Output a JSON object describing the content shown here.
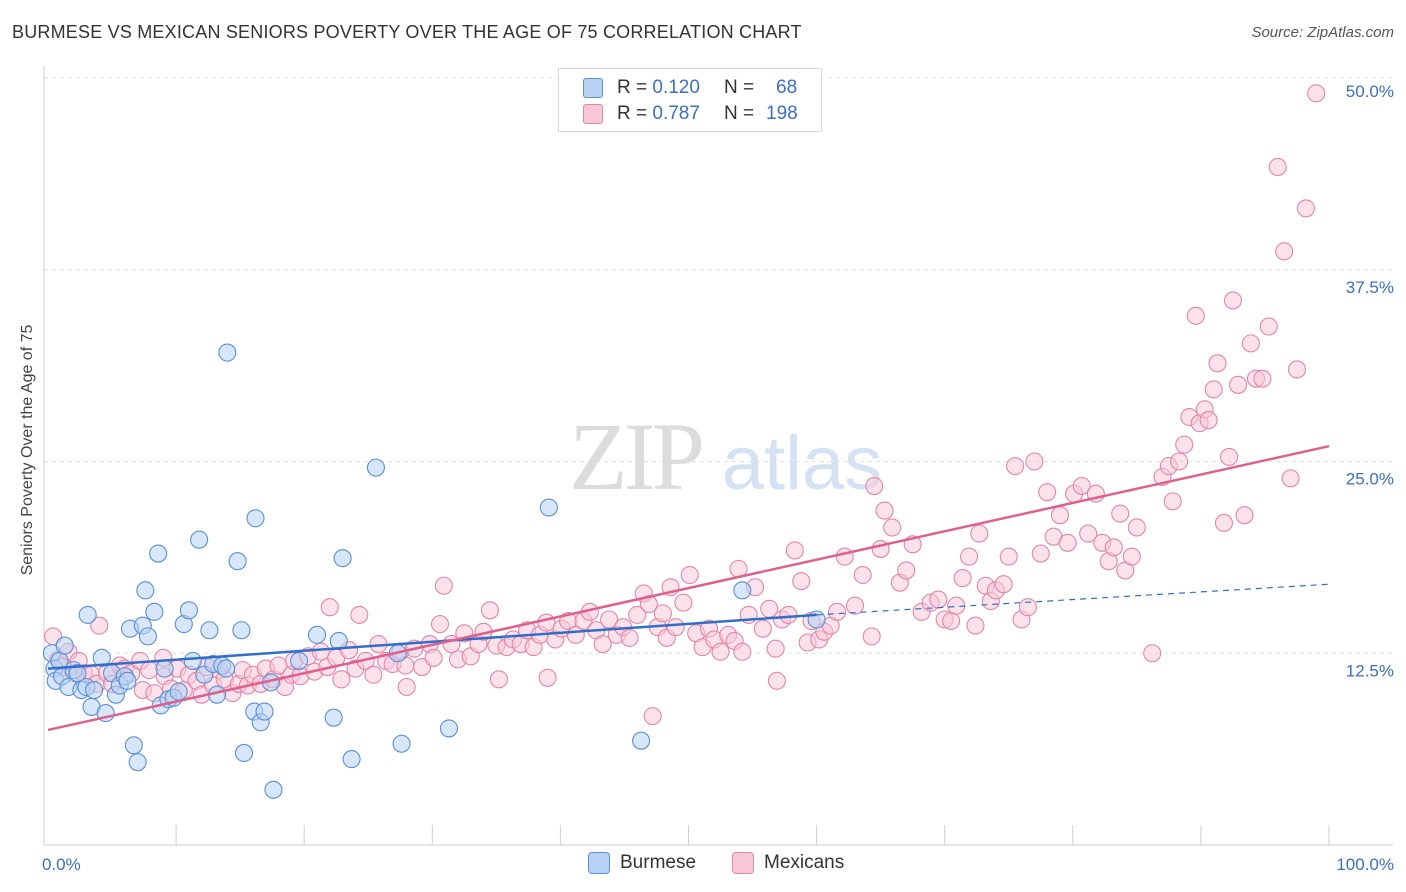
{
  "header": {
    "title": "BURMESE VS MEXICAN SENIORS POVERTY OVER THE AGE OF 75 CORRELATION CHART",
    "source": "Source: ZipAtlas.com"
  },
  "watermark": {
    "zip": "ZIP",
    "atlas": "atlas"
  },
  "stats": [
    {
      "r_label": "R =",
      "r_value": "0.120",
      "n_label": "N =",
      "n_value": "68",
      "color": "#5b8fd6",
      "fill": "#b8d2f4"
    },
    {
      "r_label": "R =",
      "r_value": "0.787",
      "n_label": "N =",
      "n_value": "198",
      "color": "#e486a6",
      "fill": "#f8c8d8"
    }
  ],
  "legend": [
    {
      "name": "Burmese",
      "color": "#5b8fd6",
      "fill": "#b8d2f4"
    },
    {
      "name": "Mexicans",
      "color": "#e486a6",
      "fill": "#f8c8d8"
    }
  ],
  "chart_data": {
    "type": "scatter",
    "title": "BURMESE VS MEXICAN SENIORS POVERTY OVER THE AGE OF 75 CORRELATION CHART",
    "xlabel": "",
    "ylabel": "Seniors Poverty Over the Age of 75",
    "xlim": [
      0,
      100
    ],
    "ylim": [
      0,
      50
    ],
    "x_tick_labels": [
      "0.0%",
      "100.0%"
    ],
    "y_ticks": [
      12.5,
      25,
      37.5,
      50
    ],
    "y_tick_labels": [
      "12.5%",
      "25.0%",
      "37.5%",
      "50.0%"
    ],
    "grid": true,
    "legend_position": "bottom-center",
    "series": [
      {
        "name": "Burmese",
        "color": "#5b8fd6",
        "fill": "#b8d2f4",
        "trend": {
          "x": [
            0,
            60
          ],
          "y": [
            11.5,
            15.0
          ],
          "dashed_to": [
            100,
            17.0
          ]
        },
        "points": [
          [
            0.3,
            12.5
          ],
          [
            0.5,
            11.5
          ],
          [
            0.6,
            10.7
          ],
          [
            0.9,
            12.0
          ],
          [
            1.1,
            11.0
          ],
          [
            1.3,
            13.0
          ],
          [
            1.6,
            10.3
          ],
          [
            2.0,
            11.4
          ],
          [
            2.3,
            11.2
          ],
          [
            2.6,
            10.1
          ],
          [
            3.0,
            10.3
          ],
          [
            3.1,
            15.0
          ],
          [
            3.4,
            9.0
          ],
          [
            3.6,
            10.1
          ],
          [
            4.2,
            12.2
          ],
          [
            4.5,
            8.6
          ],
          [
            5.0,
            11.2
          ],
          [
            5.3,
            9.8
          ],
          [
            5.6,
            10.4
          ],
          [
            6.0,
            11.0
          ],
          [
            6.2,
            10.7
          ],
          [
            6.4,
            14.1
          ],
          [
            6.7,
            6.5
          ],
          [
            7.0,
            5.4
          ],
          [
            7.4,
            14.3
          ],
          [
            7.6,
            16.6
          ],
          [
            7.8,
            13.6
          ],
          [
            8.3,
            15.2
          ],
          [
            8.6,
            19.0
          ],
          [
            8.8,
            9.1
          ],
          [
            9.1,
            11.5
          ],
          [
            9.4,
            9.5
          ],
          [
            9.8,
            9.6
          ],
          [
            10.2,
            10.0
          ],
          [
            10.6,
            14.4
          ],
          [
            11.0,
            15.3
          ],
          [
            11.3,
            12.0
          ],
          [
            11.8,
            19.9
          ],
          [
            12.2,
            11.1
          ],
          [
            12.6,
            14.0
          ],
          [
            12.9,
            11.8
          ],
          [
            13.2,
            9.8
          ],
          [
            13.6,
            11.7
          ],
          [
            13.9,
            11.5
          ],
          [
            14.0,
            32.1
          ],
          [
            14.8,
            18.5
          ],
          [
            15.1,
            14.0
          ],
          [
            15.3,
            6.0
          ],
          [
            16.1,
            8.7
          ],
          [
            16.2,
            21.3
          ],
          [
            16.6,
            8.0
          ],
          [
            16.9,
            8.7
          ],
          [
            17.4,
            10.6
          ],
          [
            17.6,
            3.6
          ],
          [
            19.6,
            12.0
          ],
          [
            21.0,
            13.7
          ],
          [
            22.3,
            8.3
          ],
          [
            22.7,
            13.3
          ],
          [
            23.0,
            18.7
          ],
          [
            23.7,
            5.6
          ],
          [
            25.6,
            24.6
          ],
          [
            27.3,
            12.5
          ],
          [
            27.6,
            6.6
          ],
          [
            31.3,
            7.6
          ],
          [
            39.1,
            22.0
          ],
          [
            46.3,
            6.8
          ],
          [
            54.2,
            16.6
          ],
          [
            60.0,
            14.7
          ]
        ]
      },
      {
        "name": "Mexicans",
        "color": "#e486a6",
        "fill": "#f8c8d8",
        "trend": {
          "x": [
            0,
            100
          ],
          "y": [
            7.5,
            26.0
          ]
        },
        "points": [
          [
            0.4,
            13.6
          ],
          [
            0.8,
            12.1
          ],
          [
            1.2,
            11.6
          ],
          [
            1.6,
            12.6
          ],
          [
            2.0,
            11.2
          ],
          [
            2.4,
            12.0
          ],
          [
            2.8,
            11.2
          ],
          [
            3.4,
            11.1
          ],
          [
            3.8,
            10.5
          ],
          [
            4.0,
            14.3
          ],
          [
            4.6,
            11.2
          ],
          [
            5.0,
            10.5
          ],
          [
            5.6,
            11.7
          ],
          [
            6.0,
            11.5
          ],
          [
            6.5,
            11.2
          ],
          [
            7.2,
            12.0
          ],
          [
            7.4,
            10.1
          ],
          [
            7.9,
            11.4
          ],
          [
            8.3,
            9.9
          ],
          [
            9.0,
            12.2
          ],
          [
            9.1,
            11.0
          ],
          [
            9.6,
            10.2
          ],
          [
            10.1,
            11.5
          ],
          [
            10.6,
            10.1
          ],
          [
            11.0,
            11.1
          ],
          [
            11.6,
            10.7
          ],
          [
            12.0,
            9.8
          ],
          [
            12.4,
            11.6
          ],
          [
            12.9,
            10.4
          ],
          [
            13.4,
            11.4
          ],
          [
            13.8,
            10.8
          ],
          [
            14.4,
            9.9
          ],
          [
            14.9,
            10.5
          ],
          [
            15.2,
            11.4
          ],
          [
            15.6,
            10.4
          ],
          [
            16.0,
            11.1
          ],
          [
            16.6,
            10.5
          ],
          [
            17.0,
            11.5
          ],
          [
            17.6,
            10.8
          ],
          [
            18.0,
            11.7
          ],
          [
            18.5,
            10.3
          ],
          [
            19.0,
            11.1
          ],
          [
            19.2,
            12.0
          ],
          [
            19.7,
            11.0
          ],
          [
            20.3,
            12.3
          ],
          [
            20.8,
            11.3
          ],
          [
            21.3,
            12.6
          ],
          [
            21.8,
            11.6
          ],
          [
            22.0,
            15.5
          ],
          [
            22.5,
            12.2
          ],
          [
            22.9,
            10.8
          ],
          [
            23.5,
            12.7
          ],
          [
            24.0,
            11.5
          ],
          [
            24.3,
            15.0
          ],
          [
            24.8,
            12.0
          ],
          [
            25.4,
            11.1
          ],
          [
            25.8,
            13.1
          ],
          [
            26.4,
            12.0
          ],
          [
            26.9,
            11.8
          ],
          [
            27.5,
            12.6
          ],
          [
            27.9,
            11.7
          ],
          [
            28.0,
            10.3
          ],
          [
            28.6,
            12.8
          ],
          [
            29.2,
            11.6
          ],
          [
            29.8,
            13.1
          ],
          [
            30.1,
            12.2
          ],
          [
            30.6,
            14.4
          ],
          [
            30.9,
            16.9
          ],
          [
            31.5,
            13.1
          ],
          [
            32.0,
            12.1
          ],
          [
            32.5,
            13.8
          ],
          [
            33.0,
            12.3
          ],
          [
            33.6,
            13.1
          ],
          [
            34.0,
            13.9
          ],
          [
            34.5,
            15.3
          ],
          [
            35.0,
            13.0
          ],
          [
            35.2,
            10.8
          ],
          [
            35.8,
            12.9
          ],
          [
            36.3,
            13.4
          ],
          [
            36.9,
            13.1
          ],
          [
            37.4,
            14.0
          ],
          [
            37.9,
            12.9
          ],
          [
            38.4,
            13.7
          ],
          [
            38.9,
            14.5
          ],
          [
            39.0,
            10.9
          ],
          [
            39.6,
            13.4
          ],
          [
            40.1,
            14.1
          ],
          [
            40.6,
            14.6
          ],
          [
            41.2,
            13.7
          ],
          [
            41.8,
            14.6
          ],
          [
            42.3,
            15.2
          ],
          [
            42.8,
            14.0
          ],
          [
            43.3,
            13.1
          ],
          [
            43.8,
            14.7
          ],
          [
            44.4,
            13.7
          ],
          [
            44.9,
            14.2
          ],
          [
            45.4,
            13.5
          ],
          [
            46.0,
            15.0
          ],
          [
            46.5,
            16.4
          ],
          [
            46.9,
            15.7
          ],
          [
            47.2,
            8.4
          ],
          [
            47.6,
            14.2
          ],
          [
            48.0,
            15.1
          ],
          [
            48.3,
            13.5
          ],
          [
            48.6,
            16.8
          ],
          [
            49.0,
            14.2
          ],
          [
            49.6,
            15.8
          ],
          [
            50.1,
            17.6
          ],
          [
            50.6,
            13.8
          ],
          [
            51.1,
            12.9
          ],
          [
            51.6,
            14.1
          ],
          [
            52.0,
            13.4
          ],
          [
            52.5,
            12.6
          ],
          [
            53.1,
            13.7
          ],
          [
            53.6,
            13.3
          ],
          [
            53.9,
            18.0
          ],
          [
            54.2,
            12.6
          ],
          [
            54.7,
            15.0
          ],
          [
            55.2,
            16.8
          ],
          [
            55.8,
            14.1
          ],
          [
            56.3,
            15.4
          ],
          [
            56.8,
            12.8
          ],
          [
            56.9,
            10.7
          ],
          [
            57.3,
            14.7
          ],
          [
            57.8,
            15.0
          ],
          [
            58.3,
            19.2
          ],
          [
            58.8,
            17.2
          ],
          [
            59.3,
            13.2
          ],
          [
            59.6,
            14.6
          ],
          [
            60.2,
            13.4
          ],
          [
            60.6,
            13.9
          ],
          [
            61.1,
            14.3
          ],
          [
            61.6,
            15.2
          ],
          [
            62.2,
            18.8
          ],
          [
            63.0,
            15.6
          ],
          [
            63.6,
            17.6
          ],
          [
            64.3,
            13.6
          ],
          [
            64.5,
            23.4
          ],
          [
            65.0,
            19.3
          ],
          [
            65.3,
            21.8
          ],
          [
            65.9,
            20.7
          ],
          [
            66.5,
            17.1
          ],
          [
            67.0,
            17.9
          ],
          [
            67.5,
            19.6
          ],
          [
            68.2,
            15.2
          ],
          [
            68.9,
            15.8
          ],
          [
            69.5,
            16.0
          ],
          [
            70.0,
            14.7
          ],
          [
            70.5,
            14.6
          ],
          [
            70.9,
            15.6
          ],
          [
            71.4,
            17.4
          ],
          [
            71.9,
            18.8
          ],
          [
            72.4,
            14.3
          ],
          [
            72.7,
            20.3
          ],
          [
            73.2,
            16.9
          ],
          [
            73.6,
            15.9
          ],
          [
            74.0,
            16.6
          ],
          [
            74.6,
            17.0
          ],
          [
            75.0,
            18.8
          ],
          [
            75.5,
            24.7
          ],
          [
            76.0,
            14.7
          ],
          [
            76.5,
            15.5
          ],
          [
            77.0,
            25.0
          ],
          [
            77.5,
            19.0
          ],
          [
            78.0,
            23.0
          ],
          [
            78.5,
            20.1
          ],
          [
            79.0,
            21.5
          ],
          [
            79.6,
            19.7
          ],
          [
            80.1,
            22.9
          ],
          [
            80.7,
            23.4
          ],
          [
            81.2,
            20.3
          ],
          [
            81.8,
            22.9
          ],
          [
            82.3,
            19.7
          ],
          [
            82.8,
            18.5
          ],
          [
            83.2,
            19.4
          ],
          [
            83.7,
            21.6
          ],
          [
            84.1,
            17.9
          ],
          [
            84.6,
            18.8
          ],
          [
            85.0,
            20.7
          ],
          [
            86.2,
            12.5
          ],
          [
            87.0,
            24.0
          ],
          [
            87.5,
            24.7
          ],
          [
            87.8,
            22.4
          ],
          [
            88.3,
            25.0
          ],
          [
            88.7,
            26.1
          ],
          [
            89.1,
            27.9
          ],
          [
            89.6,
            34.5
          ],
          [
            89.9,
            27.5
          ],
          [
            90.3,
            28.4
          ],
          [
            90.6,
            27.7
          ],
          [
            91.0,
            29.7
          ],
          [
            91.3,
            31.4
          ],
          [
            91.8,
            21.0
          ],
          [
            92.2,
            25.3
          ],
          [
            92.5,
            35.5
          ],
          [
            92.9,
            30.0
          ],
          [
            93.4,
            21.5
          ],
          [
            93.9,
            32.7
          ],
          [
            94.3,
            30.4
          ],
          [
            94.8,
            30.4
          ],
          [
            95.3,
            33.8
          ],
          [
            96.0,
            44.2
          ],
          [
            96.5,
            38.7
          ],
          [
            97.0,
            23.9
          ],
          [
            97.5,
            31.0
          ],
          [
            98.2,
            41.5
          ],
          [
            99.0,
            49.0
          ]
        ]
      }
    ]
  }
}
